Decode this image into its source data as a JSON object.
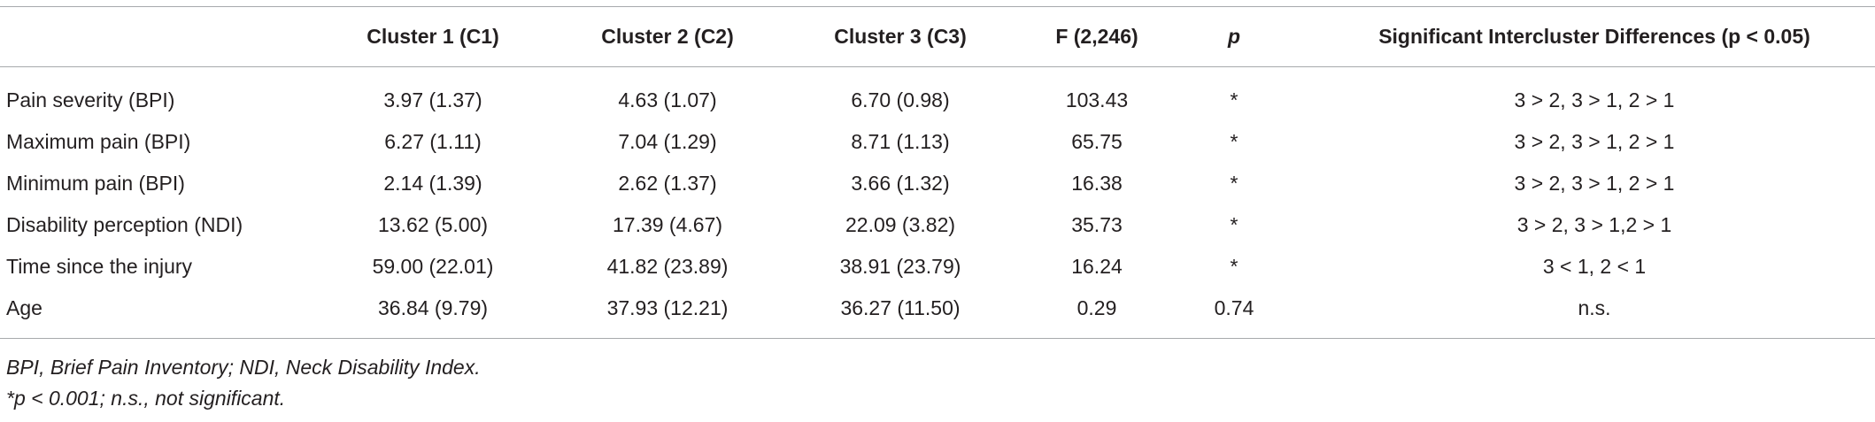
{
  "table": {
    "header": [
      "",
      "Cluster 1 (C1)",
      "Cluster 2 (C2)",
      "Cluster 3 (C3)",
      "F (2,246)",
      "p",
      "Significant Intercluster Differences (p < 0.05)"
    ],
    "rows": [
      [
        "Pain severity (BPI)",
        "3.97 (1.37)",
        "4.63 (1.07)",
        "6.70 (0.98)",
        "103.43",
        "*",
        "3 > 2, 3 > 1, 2 > 1"
      ],
      [
        "Maximum pain (BPI)",
        "6.27 (1.11)",
        "7.04 (1.29)",
        "8.71 (1.13)",
        "65.75",
        "*",
        "3 > 2, 3 > 1, 2 > 1"
      ],
      [
        "Minimum pain (BPI)",
        "2.14 (1.39)",
        "2.62 (1.37)",
        "3.66 (1.32)",
        "16.38",
        "*",
        "3 > 2, 3 > 1, 2 > 1"
      ],
      [
        "Disability perception (NDI)",
        "13.62 (5.00)",
        "17.39 (4.67)",
        "22.09 (3.82)",
        "35.73",
        "*",
        "3 > 2, 3 > 1,2 > 1"
      ],
      [
        "Time since the injury",
        "59.00 (22.01)",
        "41.82 (23.89)",
        "38.91 (23.79)",
        "16.24",
        "*",
        "3 < 1, 2 < 1"
      ],
      [
        "Age",
        "36.84 (9.79)",
        "37.93 (12.21)",
        "36.27 (11.50)",
        "0.29",
        "0.74",
        "n.s."
      ]
    ]
  },
  "footnotes": [
    "BPI, Brief Pain Inventory; NDI, Neck Disability Index.",
    "*p < 0.001; n.s., not significant."
  ]
}
